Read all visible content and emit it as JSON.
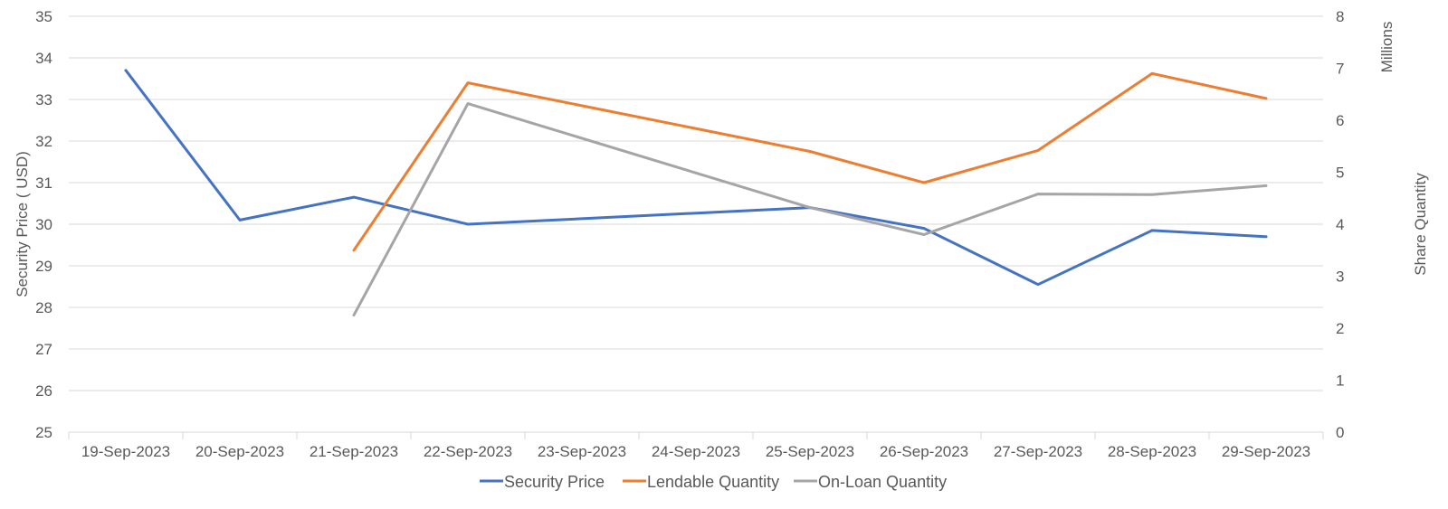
{
  "chart_data": {
    "type": "line",
    "categories": [
      "19-Sep-2023",
      "20-Sep-2023",
      "21-Sep-2023",
      "22-Sep-2023",
      "23-Sep-2023",
      "24-Sep-2023",
      "25-Sep-2023",
      "26-Sep-2023",
      "27-Sep-2023",
      "28-Sep-2023",
      "29-Sep-2023"
    ],
    "y_left": {
      "label": "Security Price ( USD)",
      "min": 25,
      "max": 35,
      "step": 1
    },
    "y_right": {
      "label": "Share Quantity",
      "unit_label": "Millions",
      "min": 0,
      "max": 8,
      "step": 1
    },
    "grid": true,
    "legend_position": "bottom",
    "series": [
      {
        "name": "Security Price",
        "axis": "left",
        "color": "#4472c4",
        "values": [
          33.7,
          30.1,
          30.65,
          30.0,
          null,
          null,
          30.4,
          29.9,
          28.55,
          29.85,
          29.7
        ]
      },
      {
        "name": "Lendable Quantity",
        "axis": "right",
        "color": "#ed7d31",
        "values": [
          null,
          null,
          3.5,
          6.72,
          null,
          null,
          5.4,
          4.8,
          5.42,
          6.9,
          6.42
        ]
      },
      {
        "name": "On-Loan Quantity",
        "axis": "right",
        "color": "#a5a5a5",
        "values": [
          null,
          null,
          2.25,
          6.32,
          null,
          null,
          4.32,
          3.8,
          4.58,
          4.57,
          4.74
        ]
      }
    ]
  }
}
